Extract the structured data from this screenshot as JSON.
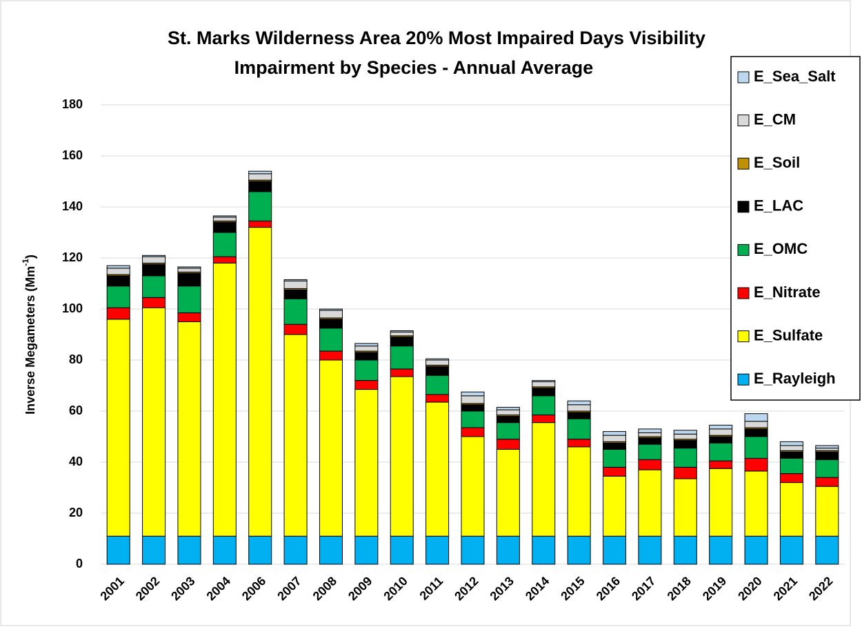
{
  "chart_data": {
    "type": "stacked-bar",
    "title": [
      "St. Marks Wilderness Area 20% Most Impaired Days Visibility",
      "Impairment by Species - Annual Average"
    ],
    "y_label": "Inverse Megameters (Mm",
    "y_label_superscript": "-1",
    "y_label_end": ")",
    "categories": [
      "2001",
      "2002",
      "2003",
      "2004",
      "2006",
      "2007",
      "2008",
      "2009",
      "2010",
      "2011",
      "2012",
      "2013",
      "2014",
      "2015",
      "2016",
      "2017",
      "2018",
      "2019",
      "2020",
      "2021",
      "2022"
    ],
    "ylim": [
      0,
      180
    ],
    "yticks": [
      0,
      20,
      40,
      60,
      80,
      100,
      120,
      140,
      160,
      180
    ],
    "grid": true,
    "legend": "right",
    "series": [
      {
        "name": "E_Rayleigh",
        "color": "#00b0f0",
        "values": [
          11,
          11,
          11,
          11,
          11,
          11,
          11,
          11,
          11,
          11,
          11,
          11,
          11,
          11,
          11,
          11,
          11,
          11,
          11,
          11,
          11
        ]
      },
      {
        "name": "E_Sulfate",
        "color": "#ffff00",
        "values": [
          85,
          89.5,
          84,
          107,
          121,
          79,
          69,
          57.5,
          62.5,
          52.5,
          39,
          34,
          44.5,
          35,
          23.5,
          26,
          22.5,
          26.5,
          25.5,
          21,
          19.5
        ]
      },
      {
        "name": "E_Nitrate",
        "color": "#ff0000",
        "values": [
          4.5,
          4,
          3.5,
          2.5,
          2.5,
          4,
          3.5,
          3.5,
          3,
          3,
          3.5,
          4,
          3,
          3,
          3.5,
          4,
          4.5,
          3,
          5,
          3.5,
          3.5
        ]
      },
      {
        "name": "E_OMC",
        "color": "#00b050",
        "values": [
          8.5,
          8.5,
          10.5,
          9.5,
          11.5,
          10,
          9,
          8,
          9,
          7.5,
          6.5,
          6.5,
          7.5,
          8,
          7,
          6,
          7.5,
          7,
          8.5,
          6,
          7
        ]
      },
      {
        "name": "E_LAC",
        "color": "#000000",
        "values": [
          4,
          4.5,
          5,
          4,
          4,
          3.5,
          3.5,
          3,
          3.5,
          3.5,
          2.5,
          2.5,
          3,
          2.5,
          2.5,
          2.5,
          3,
          2.5,
          3,
          2.5,
          3
        ]
      },
      {
        "name": "E_Soil",
        "color": "#bf9000",
        "values": [
          0.5,
          0.5,
          0.5,
          0.5,
          0.5,
          0.5,
          0.5,
          0.5,
          0.5,
          0.5,
          0.5,
          0.5,
          0.5,
          0.5,
          0.5,
          0.5,
          0.5,
          0.5,
          0.5,
          0.5,
          0.5
        ]
      },
      {
        "name": "E_CM",
        "color": "#d9d9d9",
        "values": [
          2.5,
          2.5,
          1.5,
          1.5,
          2.5,
          3,
          3,
          2,
          1.5,
          2,
          3,
          2,
          2,
          2.5,
          2.5,
          1.5,
          2,
          2.5,
          2.5,
          2,
          1
        ]
      },
      {
        "name": "E_Sea_Salt",
        "color": "#bdd7ee",
        "values": [
          1,
          0.5,
          0.5,
          0.5,
          1,
          0.5,
          0.5,
          1,
          0.5,
          0.5,
          1.5,
          1,
          0.5,
          1.5,
          1.5,
          1.5,
          1.5,
          1.5,
          3,
          1.5,
          1
        ]
      }
    ]
  }
}
